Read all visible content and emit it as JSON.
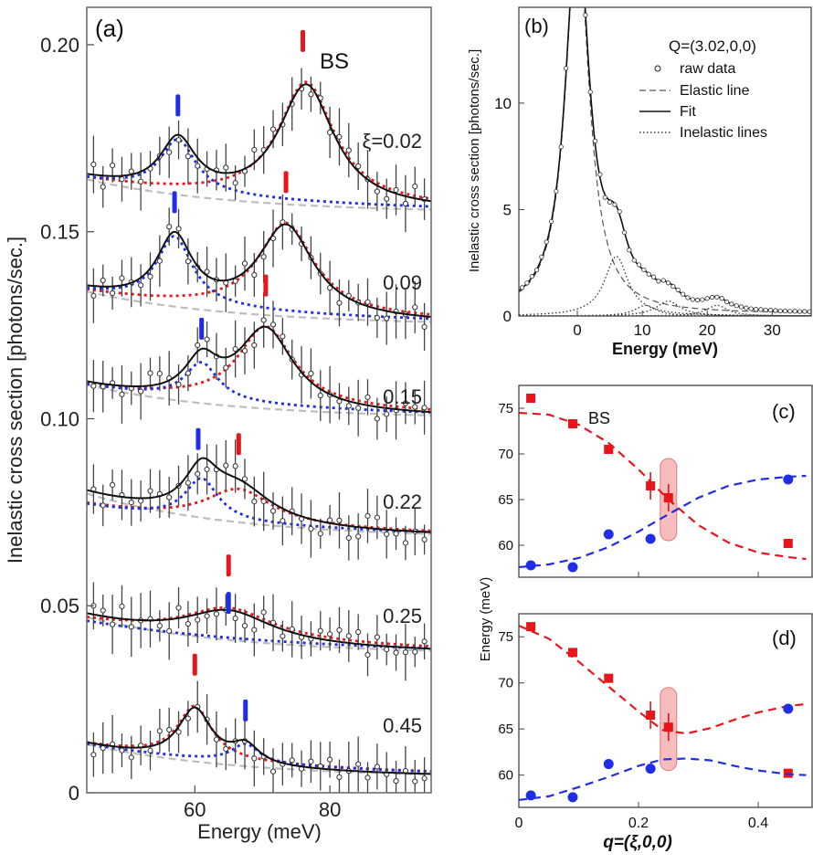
{
  "chart_data": [
    {
      "id": "a",
      "type": "line",
      "panel_label": "(a)",
      "xlabel": "Energy (meV)",
      "ylabel": "Inelastic cross section [photons/sec.]",
      "xlim": [
        44,
        95
      ],
      "ylim": [
        0,
        0.21
      ],
      "xticks": [
        60,
        80
      ],
      "xtick_labels": [
        "60",
        "80"
      ],
      "yticks": [
        0,
        0.05,
        0.1,
        0.15,
        0.2
      ],
      "ytick_labels": [
        "0",
        "0.05",
        "0.10",
        "0.15",
        "0.20"
      ],
      "bs_label": "BS",
      "xi_prefix": "ξ=",
      "colors": {
        "mode1": "#1f2ee6",
        "mode2": "#e8151b",
        "elastic": "#bdbdbd",
        "fit": "#111111",
        "data": "#222222"
      },
      "spectra": [
        {
          "xi_label": "0.02",
          "offset": 0.155,
          "elastic_amp": 0.009,
          "base_data": 0.155,
          "peak1": {
            "center": 57.5,
            "height": 0.014,
            "width": 3.2
          },
          "peak2": {
            "center": 76.5,
            "height": 0.032,
            "width": 5.0
          },
          "marker1": 57.5,
          "marker2": 76.0
        },
        {
          "xi_label": "0.09",
          "offset": 0.125,
          "elastic_amp": 0.009,
          "base_data": 0.125,
          "peak1": {
            "center": 57.0,
            "height": 0.018,
            "width": 3.2
          },
          "peak2": {
            "center": 73.5,
            "height": 0.024,
            "width": 5.0
          },
          "marker1": 57.0,
          "marker2": 73.5
        },
        {
          "xi_label": "0.15",
          "offset": 0.1,
          "elastic_amp": 0.009,
          "base_data": 0.1,
          "peak1": {
            "center": 61.0,
            "height": 0.01,
            "width": 3.0
          },
          "peak2": {
            "center": 70.5,
            "height": 0.021,
            "width": 5.0
          },
          "marker1": 61.0,
          "marker2": 70.5
        },
        {
          "xi_label": "0.22",
          "offset": 0.068,
          "elastic_amp": 0.012,
          "base_data": 0.068,
          "peak1": {
            "center": 61.0,
            "height": 0.011,
            "width": 3.0
          },
          "peak2": {
            "center": 66.5,
            "height": 0.009,
            "width": 6.0
          },
          "marker1": 60.5,
          "marker2": 66.5
        },
        {
          "xi_label": "0.25",
          "offset": 0.037,
          "elastic_amp": 0.01,
          "base_data": 0.037,
          "peak1": {
            "center": 65.0,
            "height": 0.0,
            "width": 3.0
          },
          "peak2": {
            "center": 65.0,
            "height": 0.008,
            "width": 8.0
          },
          "marker1": 65.0,
          "marker2": 65.0
        },
        {
          "xi_label": "0.45",
          "offset": 0.004,
          "elastic_amp": 0.009,
          "base_data": 0.004,
          "peak1": {
            "center": 67.5,
            "height": 0.005,
            "width": 2.5
          },
          "peak2": {
            "center": 60.0,
            "height": 0.014,
            "width": 3.0
          },
          "marker1": 67.5,
          "marker2": 60.0
        }
      ]
    },
    {
      "id": "b",
      "type": "line",
      "panel_label": "(b)",
      "xlabel": "Energy (meV)",
      "ylabel": "Inelastic cross section [photons/sec.]",
      "xlim": [
        -9,
        36
      ],
      "ylim": [
        0,
        14.5
      ],
      "xticks": [
        0,
        10,
        20,
        30
      ],
      "xtick_labels": [
        "0",
        "10",
        "20",
        "30"
      ],
      "yticks": [
        0,
        5,
        10
      ],
      "ytick_labels": [
        "0",
        "5",
        "10"
      ],
      "legend_title": "Q=(3.02,0,0)",
      "legend": [
        "raw data",
        "Elastic line",
        "Fit",
        "Inelastic lines"
      ],
      "elastic": {
        "center": 0,
        "amp": 18,
        "width": 2.2
      },
      "inelastic_peaks": [
        {
          "center": 6.0,
          "amp": 2.8,
          "width": 2.2
        },
        {
          "center": 10.5,
          "amp": 0.5,
          "width": 2.0
        },
        {
          "center": 14.0,
          "amp": 0.7,
          "width": 2.2
        },
        {
          "center": 21.5,
          "amp": 0.5,
          "width": 2.0
        }
      ]
    },
    {
      "id": "c",
      "type": "scatter",
      "panel_label": "(c)",
      "series_label": "BS",
      "xlim": [
        0,
        0.49
      ],
      "ylim": [
        56.5,
        77.5
      ],
      "yticks": [
        60,
        65,
        70,
        75
      ],
      "ytick_labels": [
        "60",
        "65",
        "70",
        "75"
      ],
      "series": [
        {
          "name": "red",
          "color": "#e8151b",
          "x": [
            0.02,
            0.09,
            0.15,
            0.22,
            0.25,
            0.45
          ],
          "y": [
            76.1,
            73.3,
            70.5,
            66.5,
            65.2,
            60.2
          ],
          "err": [
            0,
            0,
            0,
            1.5,
            1.5,
            0
          ],
          "fit_x": [
            0,
            0.05,
            0.1,
            0.15,
            0.2,
            0.25,
            0.3,
            0.35,
            0.4,
            0.45,
            0.48
          ],
          "fit_y": [
            74.5,
            74.3,
            73.2,
            71.2,
            68.3,
            65.0,
            62.2,
            60.3,
            59.2,
            58.7,
            58.5
          ]
        },
        {
          "name": "blue",
          "color": "#1f2ee6",
          "x": [
            0.02,
            0.09,
            0.15,
            0.22,
            0.45
          ],
          "y": [
            57.8,
            57.6,
            61.2,
            60.7,
            67.2
          ],
          "err": [
            0,
            0,
            0,
            0,
            0
          ],
          "fit_x": [
            0,
            0.05,
            0.1,
            0.15,
            0.2,
            0.25,
            0.3,
            0.35,
            0.4,
            0.45,
            0.48
          ],
          "fit_y": [
            57.6,
            57.9,
            58.6,
            59.8,
            61.5,
            63.4,
            65.2,
            66.5,
            67.2,
            67.5,
            67.6
          ]
        }
      ],
      "highlight_x": 0.25
    },
    {
      "id": "d",
      "type": "scatter",
      "panel_label": "(d)",
      "xlabel": "q=(ξ,0,0)",
      "ylabel": "Energy (meV)",
      "xlim": [
        0,
        0.49
      ],
      "ylim": [
        56.5,
        77.5
      ],
      "xticks": [
        0,
        0.2,
        0.4
      ],
      "xtick_labels": [
        "0",
        "0.2",
        "0.4"
      ],
      "yticks": [
        60,
        65,
        70,
        75
      ],
      "ytick_labels": [
        "60",
        "65",
        "70",
        "75"
      ],
      "series": [
        {
          "name": "red",
          "color": "#e8151b",
          "x": [
            0.02,
            0.09,
            0.15,
            0.22,
            0.25,
            0.45
          ],
          "y": [
            76.1,
            73.3,
            70.5,
            66.5,
            65.2,
            60.2
          ],
          "err": [
            0,
            0,
            0,
            1.5,
            1.5,
            0
          ],
          "fit_x": [
            0,
            0.05,
            0.1,
            0.15,
            0.2,
            0.24,
            0.28,
            0.32,
            0.36,
            0.4,
            0.45,
            0.48
          ],
          "fit_y": [
            76.2,
            74.8,
            72.3,
            69.6,
            66.9,
            64.9,
            64.5,
            65.1,
            66.0,
            66.8,
            67.5,
            67.7
          ]
        },
        {
          "name": "blue",
          "color": "#1f2ee6",
          "x": [
            0.02,
            0.09,
            0.15,
            0.22,
            0.45
          ],
          "y": [
            57.8,
            57.6,
            61.2,
            60.7,
            67.2
          ],
          "err": [
            0,
            0,
            0,
            0,
            0
          ],
          "fit_x": [
            0,
            0.05,
            0.1,
            0.15,
            0.2,
            0.24,
            0.28,
            0.32,
            0.36,
            0.4,
            0.45,
            0.48
          ],
          "fit_y": [
            57.3,
            57.7,
            58.7,
            59.8,
            61.0,
            61.7,
            61.8,
            61.6,
            61.0,
            60.5,
            60.1,
            60.0
          ]
        }
      ],
      "highlight_x": 0.25
    }
  ]
}
